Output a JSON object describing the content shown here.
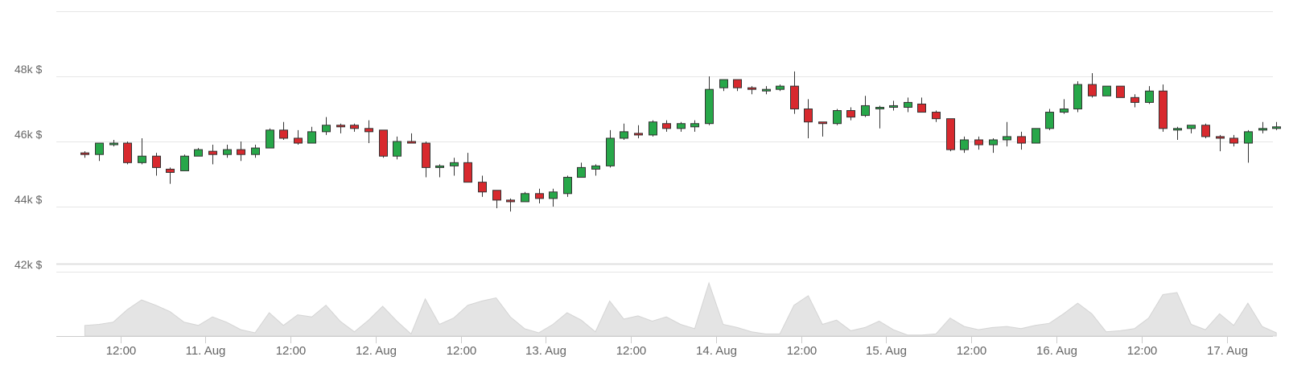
{
  "chart_data": {
    "type": "candlestick",
    "title": "",
    "xlabel": "",
    "ylabel": "",
    "y_unit": "$",
    "y_tick_labels": [
      "48k $",
      "46k $",
      "44k $",
      "42k $"
    ],
    "y_ticks": [
      48000,
      46000,
      44000,
      42000
    ],
    "ylim": [
      42000,
      50000
    ],
    "x_tick_labels": [
      "12:00",
      "11. Aug",
      "12:00",
      "12. Aug",
      "12:00",
      "13. Aug",
      "12:00",
      "14. Aug",
      "12:00",
      "15. Aug",
      "12:00",
      "16. Aug",
      "12:00",
      "17. Aug"
    ],
    "x_tick_times": [
      12,
      24,
      36,
      48,
      60,
      72,
      84,
      96,
      108,
      120,
      132,
      144,
      156,
      168
    ],
    "x_time_unit": "hours since 10. Aug 00:00",
    "candle_interval_hours": 2,
    "first_candle_hour": 7,
    "colors": {
      "up": "#27a749",
      "down": "#d8292e",
      "volume": "#e4e4e4",
      "grid": "#e6e6e6",
      "label": "#666666"
    },
    "grid": true,
    "candles": [
      [
        45650,
        45700,
        45500,
        45600
      ],
      [
        45600,
        45950,
        45400,
        45950
      ],
      [
        45950,
        46050,
        45850,
        45950
      ],
      [
        45950,
        46000,
        45300,
        45350
      ],
      [
        45350,
        46100,
        45300,
        45550
      ],
      [
        45550,
        45650,
        44950,
        45200
      ],
      [
        45150,
        45200,
        44700,
        45050
      ],
      [
        45100,
        45600,
        45100,
        45550
      ],
      [
        45550,
        45800,
        45550,
        45750
      ],
      [
        45700,
        45900,
        45300,
        45600
      ],
      [
        45600,
        45900,
        45500,
        45750
      ],
      [
        45750,
        46000,
        45400,
        45600
      ],
      [
        45600,
        45900,
        45500,
        45800
      ],
      [
        45800,
        46400,
        45800,
        46350
      ],
      [
        46350,
        46600,
        46050,
        46100
      ],
      [
        46100,
        46350,
        45900,
        45950
      ],
      [
        45950,
        46450,
        45950,
        46300
      ],
      [
        46300,
        46750,
        46200,
        46500
      ],
      [
        46500,
        46550,
        46250,
        46450
      ],
      [
        46500,
        46550,
        46300,
        46400
      ],
      [
        46400,
        46650,
        45950,
        46300
      ],
      [
        46350,
        46350,
        45500,
        45550
      ],
      [
        45550,
        46150,
        45450,
        46000
      ],
      [
        46000,
        46250,
        45950,
        45950
      ],
      [
        45950,
        46000,
        44900,
        45200
      ],
      [
        45200,
        45300,
        44900,
        45250
      ],
      [
        45250,
        45500,
        44950,
        45350
      ],
      [
        45350,
        45650,
        44750,
        44750
      ],
      [
        44750,
        44950,
        44300,
        44450
      ],
      [
        44500,
        44500,
        43950,
        44200
      ],
      [
        44200,
        44250,
        43850,
        44150
      ],
      [
        44150,
        44450,
        44150,
        44400
      ],
      [
        44400,
        44550,
        44100,
        44250
      ],
      [
        44250,
        44550,
        44000,
        44450
      ],
      [
        44400,
        44950,
        44300,
        44900
      ],
      [
        44900,
        45350,
        44900,
        45200
      ],
      [
        45150,
        45300,
        44950,
        45250
      ],
      [
        45250,
        46350,
        45200,
        46100
      ],
      [
        46100,
        46550,
        46050,
        46300
      ],
      [
        46250,
        46500,
        46100,
        46200
      ],
      [
        46200,
        46650,
        46150,
        46600
      ],
      [
        46550,
        46650,
        46300,
        46400
      ],
      [
        46400,
        46600,
        46300,
        46550
      ],
      [
        46450,
        46650,
        46300,
        46550
      ],
      [
        46550,
        48000,
        46500,
        47600
      ],
      [
        47650,
        47900,
        47550,
        47900
      ],
      [
        47900,
        47900,
        47550,
        47650
      ],
      [
        47650,
        47700,
        47450,
        47600
      ],
      [
        47600,
        47700,
        47450,
        47600
      ],
      [
        47600,
        47750,
        47550,
        47700
      ],
      [
        47700,
        48150,
        46850,
        47000
      ],
      [
        47000,
        47300,
        46100,
        46600
      ],
      [
        46600,
        46600,
        46150,
        46550
      ],
      [
        46550,
        47000,
        46500,
        46950
      ],
      [
        46950,
        47050,
        46650,
        46750
      ],
      [
        46800,
        47400,
        46750,
        47100
      ],
      [
        47050,
        47100,
        46400,
        47050
      ],
      [
        47050,
        47250,
        46950,
        47100
      ],
      [
        47050,
        47350,
        46900,
        47200
      ],
      [
        47150,
        47350,
        46900,
        46900
      ],
      [
        46900,
        46950,
        46600,
        46700
      ],
      [
        46700,
        46700,
        45700,
        45750
      ],
      [
        45750,
        46150,
        45650,
        46050
      ],
      [
        46050,
        46150,
        45750,
        45900
      ],
      [
        45900,
        46100,
        45650,
        46050
      ],
      [
        46050,
        46600,
        45850,
        46150
      ],
      [
        46150,
        46300,
        45750,
        45950
      ],
      [
        45950,
        46400,
        45950,
        46400
      ],
      [
        46400,
        47000,
        46350,
        46900
      ],
      [
        46900,
        47300,
        46850,
        47000
      ],
      [
        47000,
        47850,
        46900,
        47750
      ],
      [
        47750,
        48100,
        47350,
        47400
      ],
      [
        47400,
        47700,
        47400,
        47700
      ],
      [
        47700,
        47700,
        47350,
        47350
      ],
      [
        47350,
        47450,
        47050,
        47200
      ],
      [
        47200,
        47700,
        47150,
        47550
      ],
      [
        47550,
        47750,
        46300,
        46400
      ],
      [
        46400,
        46450,
        46050,
        46400
      ],
      [
        46400,
        46500,
        46250,
        46500
      ],
      [
        46500,
        46550,
        46100,
        46150
      ],
      [
        46150,
        46200,
        45700,
        46100
      ],
      [
        46100,
        46200,
        45850,
        45950
      ],
      [
        45950,
        46350,
        45350,
        46300
      ],
      [
        46350,
        46600,
        46250,
        46400
      ],
      [
        46400,
        46600,
        46350,
        46450
      ]
    ],
    "volume_relative": [
      0.2,
      0.22,
      0.26,
      0.5,
      0.68,
      0.58,
      0.46,
      0.26,
      0.2,
      0.36,
      0.26,
      0.12,
      0.06,
      0.44,
      0.2,
      0.4,
      0.36,
      0.58,
      0.28,
      0.08,
      0.3,
      0.56,
      0.28,
      0.04,
      0.7,
      0.22,
      0.34,
      0.58,
      0.66,
      0.72,
      0.36,
      0.14,
      0.06,
      0.22,
      0.44,
      0.3,
      0.08,
      0.66,
      0.32,
      0.38,
      0.28,
      0.36,
      0.22,
      0.14,
      1.0,
      0.22,
      0.16,
      0.08,
      0.04,
      0.04,
      0.58,
      0.76,
      0.22,
      0.3,
      0.1,
      0.16,
      0.28,
      0.12,
      0.02,
      0.02,
      0.04,
      0.34,
      0.18,
      0.12,
      0.16,
      0.18,
      0.14,
      0.2,
      0.24,
      0.42,
      0.62,
      0.42,
      0.08,
      0.1,
      0.14,
      0.34,
      0.78,
      0.82,
      0.22,
      0.12,
      0.42,
      0.2,
      0.62,
      0.18,
      0.06
    ]
  }
}
